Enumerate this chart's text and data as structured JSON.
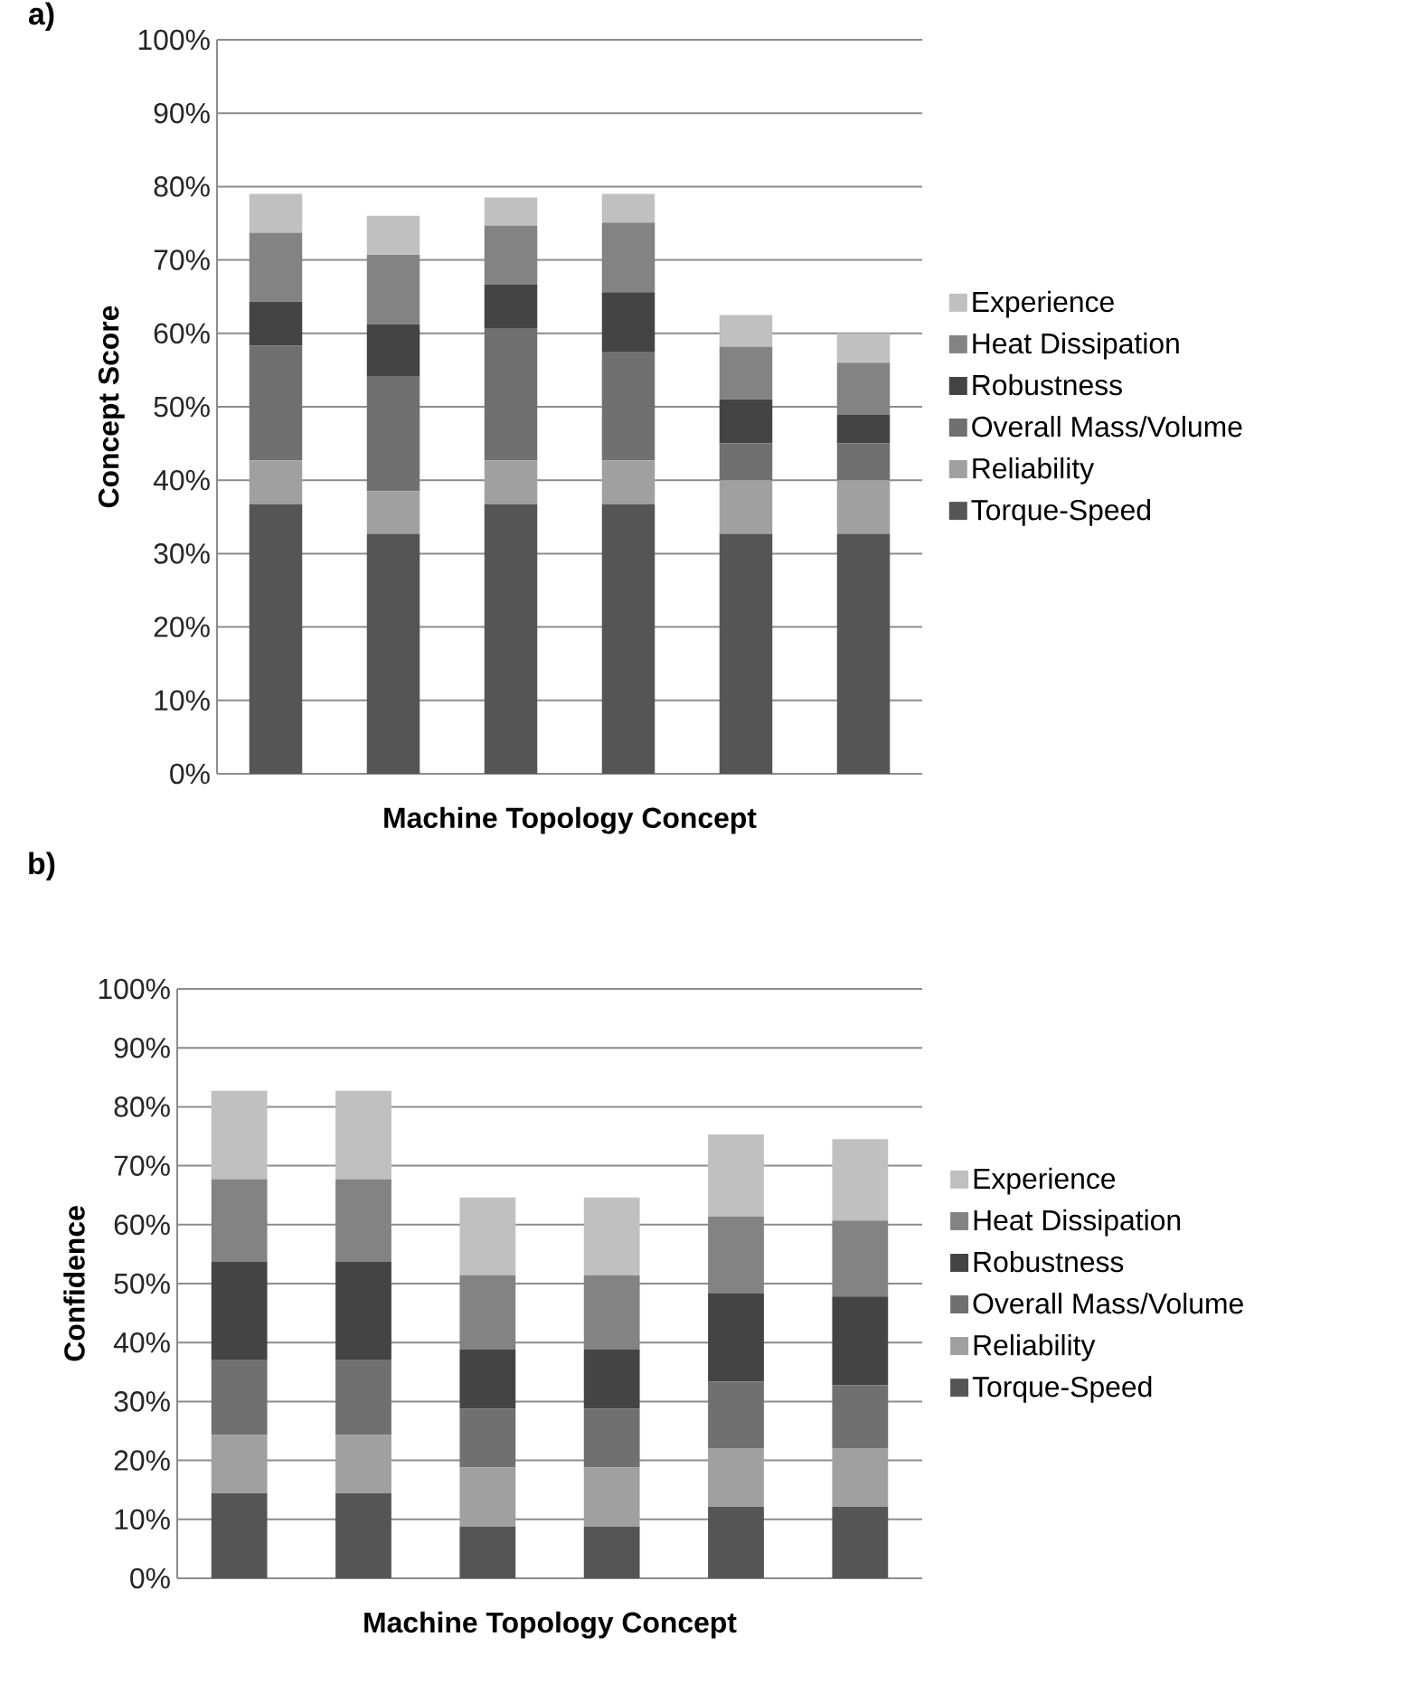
{
  "chart_data": [
    {
      "type": "bar",
      "title": "a)",
      "xlabel": "Machine Topology Concept",
      "ylabel": "Concept Score",
      "stacked": true,
      "grid": "y",
      "legend": "right",
      "categories": [
        null,
        null,
        null,
        null,
        null,
        null
      ],
      "ylim": [
        0,
        100
      ],
      "yticks": [
        {
          "value": 0,
          "label": "0%"
        },
        {
          "value": 10,
          "label": "10%"
        },
        {
          "value": 20,
          "label": "20%"
        },
        {
          "value": 30,
          "label": "30%"
        },
        {
          "value": 40,
          "label": "40%"
        },
        {
          "value": 50,
          "label": "50%"
        },
        {
          "value": 60,
          "label": "60%"
        },
        {
          "value": 70,
          "label": "70%"
        },
        {
          "value": 80,
          "label": "80%"
        },
        {
          "value": 90,
          "label": "90%"
        },
        {
          "value": 100,
          "label": "100%"
        }
      ],
      "series": [
        {
          "name": "Torque-Speed",
          "color": "#555555",
          "values": [
            36.7,
            32.7,
            36.7,
            36.7,
            32.7,
            32.7
          ]
        },
        {
          "name": "Reliability",
          "color": "#a0a0a0",
          "values": [
            6,
            5.8,
            6,
            6,
            7.3,
            7.3
          ]
        },
        {
          "name": "Overall Mass/Volume",
          "color": "#707070",
          "values": [
            15.6,
            15.7,
            18,
            14.8,
            5,
            5
          ]
        },
        {
          "name": "Robustness",
          "color": "#444444",
          "values": [
            6,
            7,
            6,
            8.1,
            6,
            3.9
          ]
        },
        {
          "name": "Heat Dissipation",
          "color": "#838383",
          "values": [
            9.4,
            9.5,
            8,
            9.5,
            7.2,
            7.1
          ]
        },
        {
          "name": "Experience",
          "color": "#c0c0c0",
          "values": [
            5.3,
            5.3,
            3.8,
            3.9,
            4.3,
            4
          ]
        }
      ]
    },
    {
      "type": "bar",
      "title": "b)",
      "xlabel": "Machine Topology Concept",
      "ylabel": "Confidence",
      "stacked": true,
      "grid": "y",
      "legend": "right",
      "categories": [
        null,
        null,
        null,
        null,
        null,
        null
      ],
      "ylim": [
        0,
        100
      ],
      "yticks": [
        {
          "value": 0,
          "label": "0%"
        },
        {
          "value": 10,
          "label": "10%"
        },
        {
          "value": 20,
          "label": "20%"
        },
        {
          "value": 30,
          "label": "30%"
        },
        {
          "value": 40,
          "label": "40%"
        },
        {
          "value": 50,
          "label": "50%"
        },
        {
          "value": 60,
          "label": "60%"
        },
        {
          "value": 70,
          "label": "70%"
        },
        {
          "value": 80,
          "label": "80%"
        },
        {
          "value": 90,
          "label": "90%"
        },
        {
          "value": 100,
          "label": "100%"
        }
      ],
      "series": [
        {
          "name": "Torque-Speed",
          "color": "#555555",
          "values": [
            14.4,
            14.4,
            8.8,
            8.8,
            12.1,
            12.1
          ]
        },
        {
          "name": "Reliability",
          "color": "#a0a0a0",
          "values": [
            9.9,
            9.9,
            10,
            10,
            10,
            10
          ]
        },
        {
          "name": "Overall Mass/Volume",
          "color": "#707070",
          "values": [
            12.7,
            12.7,
            10,
            10,
            11.3,
            10.7
          ]
        },
        {
          "name": "Robustness",
          "color": "#444444",
          "values": [
            16.7,
            16.7,
            10,
            10,
            15,
            15
          ]
        },
        {
          "name": "Heat Dissipation",
          "color": "#838383",
          "values": [
            14,
            14,
            12.6,
            12.6,
            13,
            12.9
          ]
        },
        {
          "name": "Experience",
          "color": "#c0c0c0",
          "values": [
            15,
            15,
            13.2,
            13.2,
            13.9,
            13.8
          ]
        }
      ]
    }
  ]
}
